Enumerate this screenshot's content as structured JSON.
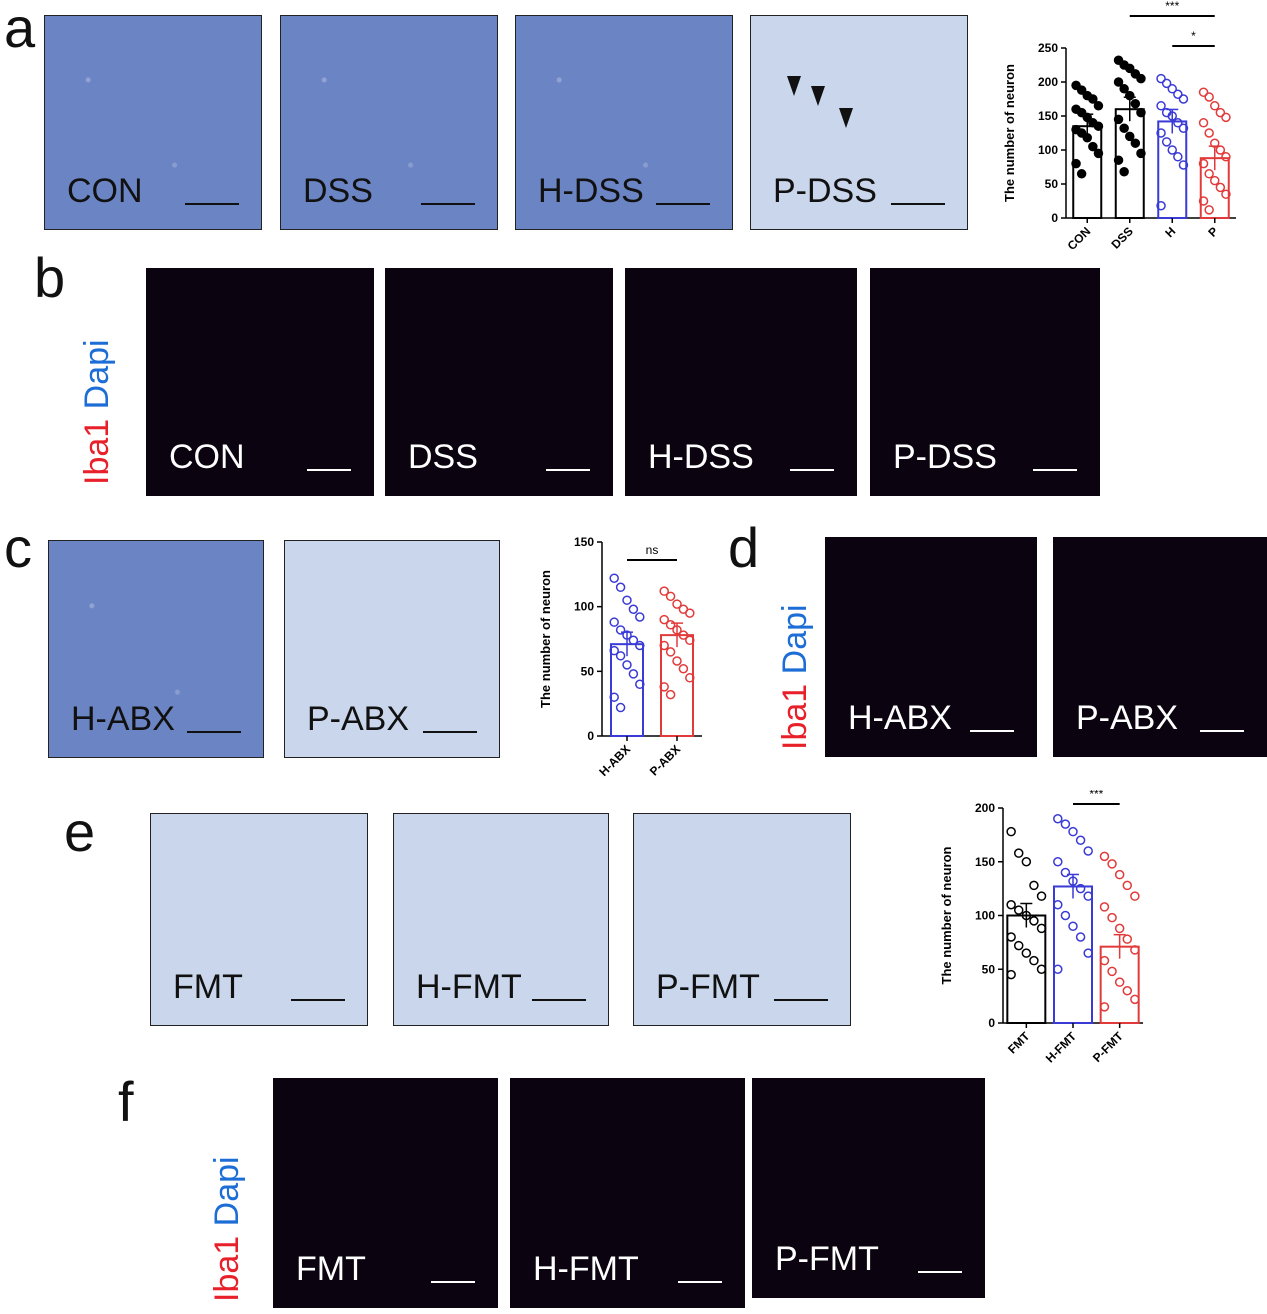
{
  "panels": {
    "a": {
      "letter": "a",
      "images": [
        "CON",
        "DSS",
        "H-DSS",
        "P-DSS"
      ]
    },
    "b": {
      "letter": "b",
      "images": [
        "CON",
        "DSS",
        "H-DSS",
        "P-DSS"
      ],
      "stain_red": "Iba1",
      "stain_blue": "Dapi"
    },
    "c": {
      "letter": "c",
      "images": [
        "H-ABX",
        "P-ABX"
      ]
    },
    "d": {
      "letter": "d",
      "images": [
        "H-ABX",
        "P-ABX"
      ],
      "stain_red": "Iba1",
      "stain_blue": "Dapi"
    },
    "e": {
      "letter": "e",
      "images": [
        "FMT",
        "H-FMT",
        "P-FMT"
      ]
    },
    "f": {
      "letter": "f",
      "images": [
        "FMT",
        "H-FMT",
        "P-FMT"
      ],
      "stain_red": "Iba1",
      "stain_blue": "Dapi"
    }
  },
  "chart_data": [
    {
      "type": "bar",
      "panel": "a",
      "ylabel": "The number of neuron",
      "categories": [
        "CON",
        "DSS",
        "H",
        "P"
      ],
      "values": [
        135,
        160,
        142,
        88
      ],
      "ylim": [
        0,
        250
      ],
      "yticks": [
        0,
        50,
        100,
        150,
        200,
        250
      ],
      "significance": [
        {
          "from": "DSS",
          "to": "P",
          "label": "***"
        },
        {
          "from": "H",
          "to": "P",
          "label": "*"
        }
      ],
      "colors": [
        "#000000",
        "#000000",
        "#3a3ad6",
        "#e23a3a"
      ],
      "points": [
        [
          195,
          188,
          180,
          175,
          165,
          160,
          155,
          148,
          140,
          135,
          130,
          125,
          118,
          105,
          95,
          80,
          65
        ],
        [
          232,
          225,
          220,
          212,
          205,
          200,
          190,
          180,
          168,
          155,
          145,
          132,
          120,
          110,
          95,
          85,
          68
        ],
        [
          205,
          198,
          190,
          182,
          175,
          165,
          155,
          150,
          140,
          132,
          125,
          112,
          100,
          90,
          78,
          18
        ],
        [
          185,
          178,
          165,
          155,
          148,
          140,
          125,
          110,
          100,
          90,
          80,
          65,
          55,
          45,
          35,
          25,
          12
        ]
      ]
    },
    {
      "type": "bar",
      "panel": "c",
      "ylabel": "The number of neuron",
      "categories": [
        "H-ABX",
        "P-ABX"
      ],
      "values": [
        71,
        78
      ],
      "ylim": [
        0,
        150
      ],
      "yticks": [
        0,
        50,
        100,
        150
      ],
      "significance": [
        {
          "from": "H-ABX",
          "to": "P-ABX",
          "label": "ns"
        }
      ],
      "colors": [
        "#3a3ad6",
        "#e23a3a"
      ],
      "points": [
        [
          122,
          115,
          105,
          98,
          92,
          88,
          82,
          78,
          74,
          70,
          66,
          62,
          55,
          48,
          40,
          30,
          22
        ],
        [
          112,
          108,
          102,
          98,
          95,
          90,
          86,
          82,
          78,
          74,
          70,
          65,
          58,
          52,
          45,
          38,
          32
        ]
      ]
    },
    {
      "type": "bar",
      "panel": "e",
      "ylabel": "The number of neuron",
      "categories": [
        "FMT",
        "H-FMT",
        "P-FMT"
      ],
      "values": [
        100,
        127,
        71
      ],
      "ylim": [
        0,
        200
      ],
      "yticks": [
        0,
        50,
        100,
        150,
        200
      ],
      "significance": [
        {
          "from": "H-FMT",
          "to": "P-FMT",
          "label": "***"
        }
      ],
      "colors": [
        "#000000",
        "#3a3ad6",
        "#e23a3a"
      ],
      "points": [
        [
          178,
          158,
          150,
          128,
          118,
          110,
          105,
          100,
          95,
          88,
          80,
          72,
          65,
          58,
          50,
          45
        ],
        [
          190,
          185,
          178,
          170,
          160,
          150,
          140,
          132,
          125,
          118,
          110,
          100,
          90,
          80,
          65,
          50
        ],
        [
          155,
          148,
          138,
          128,
          118,
          108,
          98,
          88,
          78,
          68,
          58,
          48,
          38,
          30,
          22,
          15
        ]
      ]
    }
  ]
}
